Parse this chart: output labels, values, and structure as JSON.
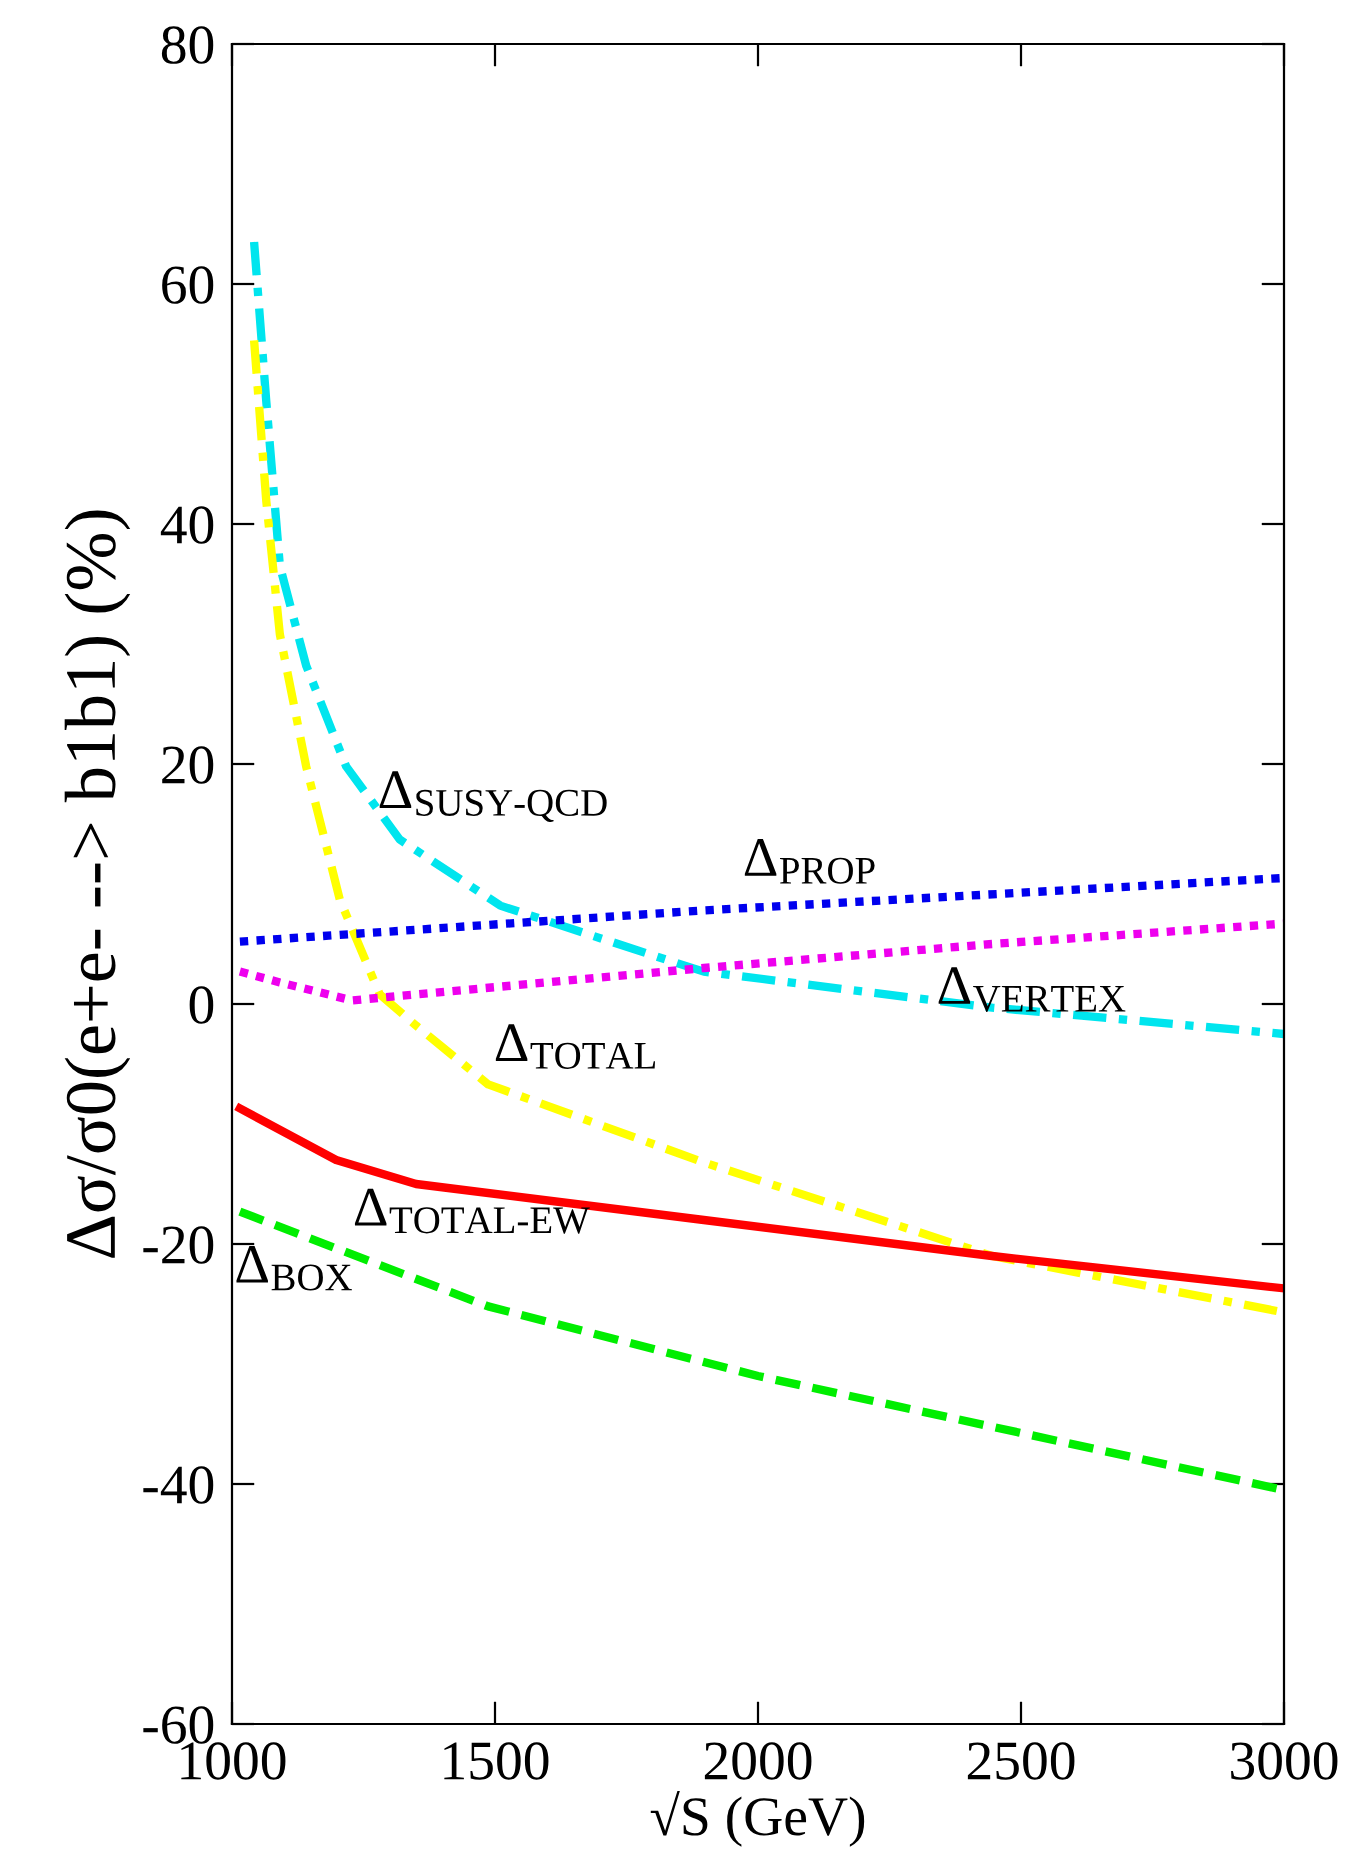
{
  "chart_data": {
    "type": "line",
    "xlabel": "√S (GeV)",
    "ylabel": "Δσ/σ0(e+e- --> b1b1) (%)",
    "xlim": [
      1000,
      3000
    ],
    "xticks": [
      1000,
      1500,
      2000,
      2500,
      3000
    ],
    "ylim": [
      -60,
      80
    ],
    "yticks": [
      -60,
      -40,
      -20,
      0,
      20,
      40,
      60,
      80
    ],
    "grid": false,
    "series": [
      {
        "name": "Δ$_{SUSY-QCD}$",
        "color": "#00e5ee",
        "line_style": "dashdot",
        "x": [
          1042,
          1065,
          1091,
          1141,
          1217,
          1319,
          1510,
          1825,
          1897,
          2445,
          3000
        ],
        "values": [
          63.5,
          50.3,
          36.5,
          28.2,
          19.8,
          13.7,
          8.2,
          3.7,
          2.7,
          -0.3,
          -2.5
        ]
      },
      {
        "name": "Δ$_{TOTAL}$",
        "color": "#ffff00",
        "line_style": "dashdot",
        "x": [
          1042,
          1065,
          1091,
          1141,
          1205,
          1281,
          1350,
          1487,
          1897,
          2445,
          3000
        ],
        "values": [
          55.3,
          42,
          30.8,
          19.8,
          8.7,
          0.8,
          -1.8,
          -6.7,
          -13.2,
          -21,
          -25.7
        ]
      },
      {
        "name": "Δ$_{PROP}$",
        "color": "#0000ee",
        "line_style": "dotted",
        "x": [
          1015,
          1897,
          3000
        ],
        "values": [
          5.2,
          7.8,
          10.5
        ]
      },
      {
        "name": "Δ$_{VERTEX}$",
        "color": "#ee00ee",
        "line_style": "dotted",
        "x": [
          1015,
          1091,
          1228,
          1350,
          1897,
          2445,
          3000
        ],
        "values": [
          2.7,
          1.8,
          0.3,
          0.8,
          3,
          5,
          6.7
        ]
      },
      {
        "name": "Δ$_{TOTAL-EW}$",
        "color": "#ff0000",
        "line_style": "solid",
        "x": [
          1015,
          1198,
          1350,
          1897,
          2445,
          3000
        ],
        "values": [
          -8.7,
          -13,
          -15,
          -18,
          -21,
          -23.7
        ]
      },
      {
        "name": "Δ$_{BOX}$",
        "color": "#00ee00",
        "line_style": "dashed",
        "x": [
          1015,
          1487,
          2000,
          3000
        ],
        "values": [
          -17.3,
          -25.2,
          -31,
          -40.5
        ]
      }
    ]
  }
}
